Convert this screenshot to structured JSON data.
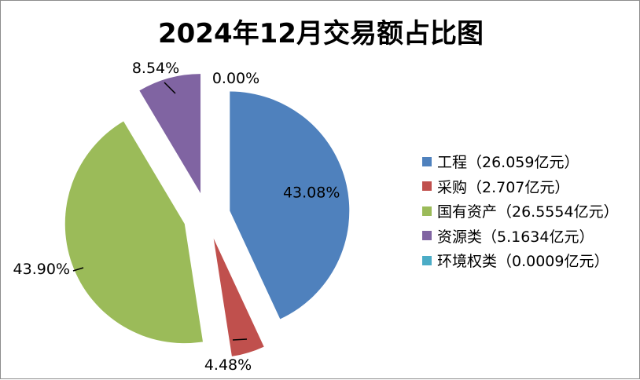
{
  "chart_data": {
    "type": "pie",
    "title": "2024年12月交易额占比图",
    "categories": [
      "工程",
      "采购",
      "国有资产",
      "资源类",
      "环境权类"
    ],
    "values": [
      26.059,
      2.707,
      26.5554,
      5.1634,
      0.0009
    ],
    "percent_labels": [
      "43.08%",
      "4.48%",
      "43.90%",
      "8.54%",
      "0.00%"
    ],
    "legend_labels": [
      "工程（26.059亿元）",
      "采购（2.707亿元）",
      "国有资产（26.5554亿元）",
      "资源类（5.1634亿元）",
      "环境权类（0.0009亿元）"
    ],
    "colors": [
      "#4f81bd",
      "#c0504d",
      "#9bbb59",
      "#8064a2",
      "#4bacc6"
    ],
    "exploded": true,
    "legend_position": "right"
  }
}
